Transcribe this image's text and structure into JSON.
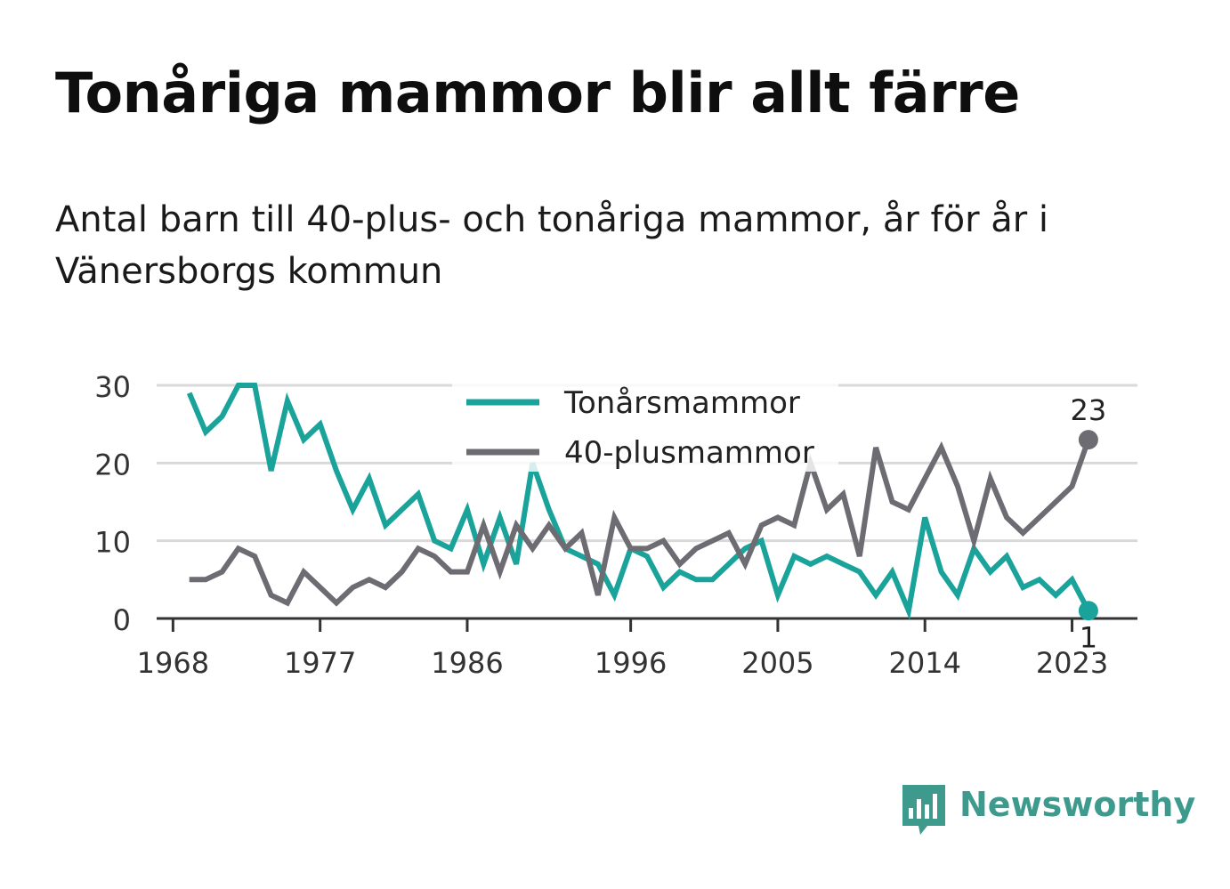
{
  "title": "Tonåriga mammor blir allt färre",
  "subtitle": "Antal barn till 40-plus- och tonåriga mammor, år för år i Vänersborgs kommun",
  "brand": {
    "name": "Newsworthy",
    "icon": "newsworthy-logo-icon",
    "color": "#3d9a8d"
  },
  "chart_data": {
    "type": "line",
    "title": "",
    "xlabel": "",
    "ylabel": "",
    "x": [
      1969,
      1970,
      1971,
      1972,
      1973,
      1974,
      1975,
      1976,
      1977,
      1978,
      1979,
      1980,
      1981,
      1982,
      1983,
      1984,
      1985,
      1986,
      1987,
      1988,
      1989,
      1990,
      1991,
      1992,
      1993,
      1994,
      1995,
      1996,
      1997,
      1998,
      1999,
      2000,
      2001,
      2002,
      2003,
      2004,
      2005,
      2006,
      2007,
      2008,
      2009,
      2010,
      2011,
      2012,
      2013,
      2014,
      2015,
      2016,
      2017,
      2018,
      2019,
      2020,
      2021,
      2022,
      2023,
      2024
    ],
    "series": [
      {
        "name": "Tonårsmammor",
        "color": "#1aa39a",
        "values": [
          29,
          24,
          26,
          30,
          30,
          19,
          28,
          23,
          25,
          19,
          14,
          18,
          12,
          14,
          16,
          10,
          9,
          14,
          7,
          13,
          7,
          20,
          14,
          9,
          8,
          7,
          3,
          9,
          8,
          4,
          6,
          5,
          5,
          7,
          9,
          10,
          3,
          8,
          7,
          8,
          7,
          6,
          3,
          6,
          1,
          13,
          6,
          3,
          9,
          6,
          8,
          4,
          5,
          3,
          5,
          1
        ]
      },
      {
        "name": "40-plusmammor",
        "color": "#6d6c72",
        "values": [
          5,
          5,
          6,
          9,
          8,
          3,
          2,
          6,
          4,
          2,
          4,
          5,
          4,
          6,
          9,
          8,
          6,
          6,
          12,
          6,
          12,
          9,
          12,
          9,
          11,
          3,
          13,
          9,
          9,
          10,
          7,
          9,
          10,
          11,
          7,
          12,
          13,
          12,
          20,
          14,
          16,
          8,
          22,
          15,
          14,
          18,
          22,
          17,
          10,
          18,
          13,
          11,
          13,
          15,
          17,
          23
        ]
      }
    ],
    "ylim": [
      0,
      30
    ],
    "xlim": [
      1967,
      2027
    ],
    "y_ticks": [
      "0",
      "10",
      "20",
      "30"
    ],
    "y_tick_values": [
      0,
      10,
      20,
      30
    ],
    "x_ticks": [
      "1968",
      "1977",
      "1986",
      "1996",
      "2005",
      "2014",
      "2023"
    ],
    "x_tick_values": [
      1968,
      1977,
      1986,
      1996,
      2005,
      2014,
      2023
    ],
    "end_labels": [
      "1",
      "23"
    ],
    "grid": true,
    "legend": "top-center"
  }
}
